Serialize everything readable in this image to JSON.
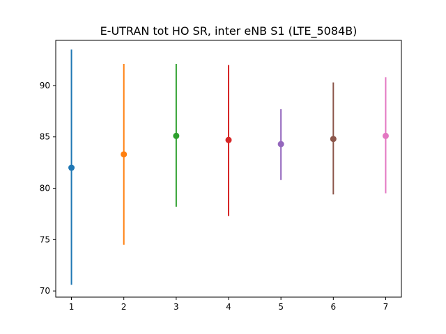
{
  "chart_data": {
    "type": "errorbar",
    "title": "E-UTRAN tot HO SR, inter eNB S1 (LTE_5084B)",
    "xlabel": "",
    "ylabel": "",
    "xlim": [
      0.7,
      7.3
    ],
    "ylim": [
      69.4,
      94.4
    ],
    "xticks": [
      1,
      2,
      3,
      4,
      5,
      6,
      7
    ],
    "yticks": [
      70,
      75,
      80,
      85,
      90
    ],
    "grid": false,
    "points": [
      {
        "x": 1,
        "y": 82.0,
        "low": 70.6,
        "high": 93.5,
        "color": "#1f77b4"
      },
      {
        "x": 2,
        "y": 83.3,
        "low": 74.5,
        "high": 92.1,
        "color": "#ff7f0e"
      },
      {
        "x": 3,
        "y": 85.1,
        "low": 78.2,
        "high": 92.1,
        "color": "#2ca02c"
      },
      {
        "x": 4,
        "y": 84.7,
        "low": 77.3,
        "high": 92.0,
        "color": "#d62728"
      },
      {
        "x": 5,
        "y": 84.3,
        "low": 80.8,
        "high": 87.7,
        "color": "#9467bd"
      },
      {
        "x": 6,
        "y": 84.8,
        "low": 79.4,
        "high": 90.3,
        "color": "#8c564b"
      },
      {
        "x": 7,
        "y": 85.1,
        "low": 79.5,
        "high": 90.8,
        "color": "#e377c2"
      }
    ]
  }
}
